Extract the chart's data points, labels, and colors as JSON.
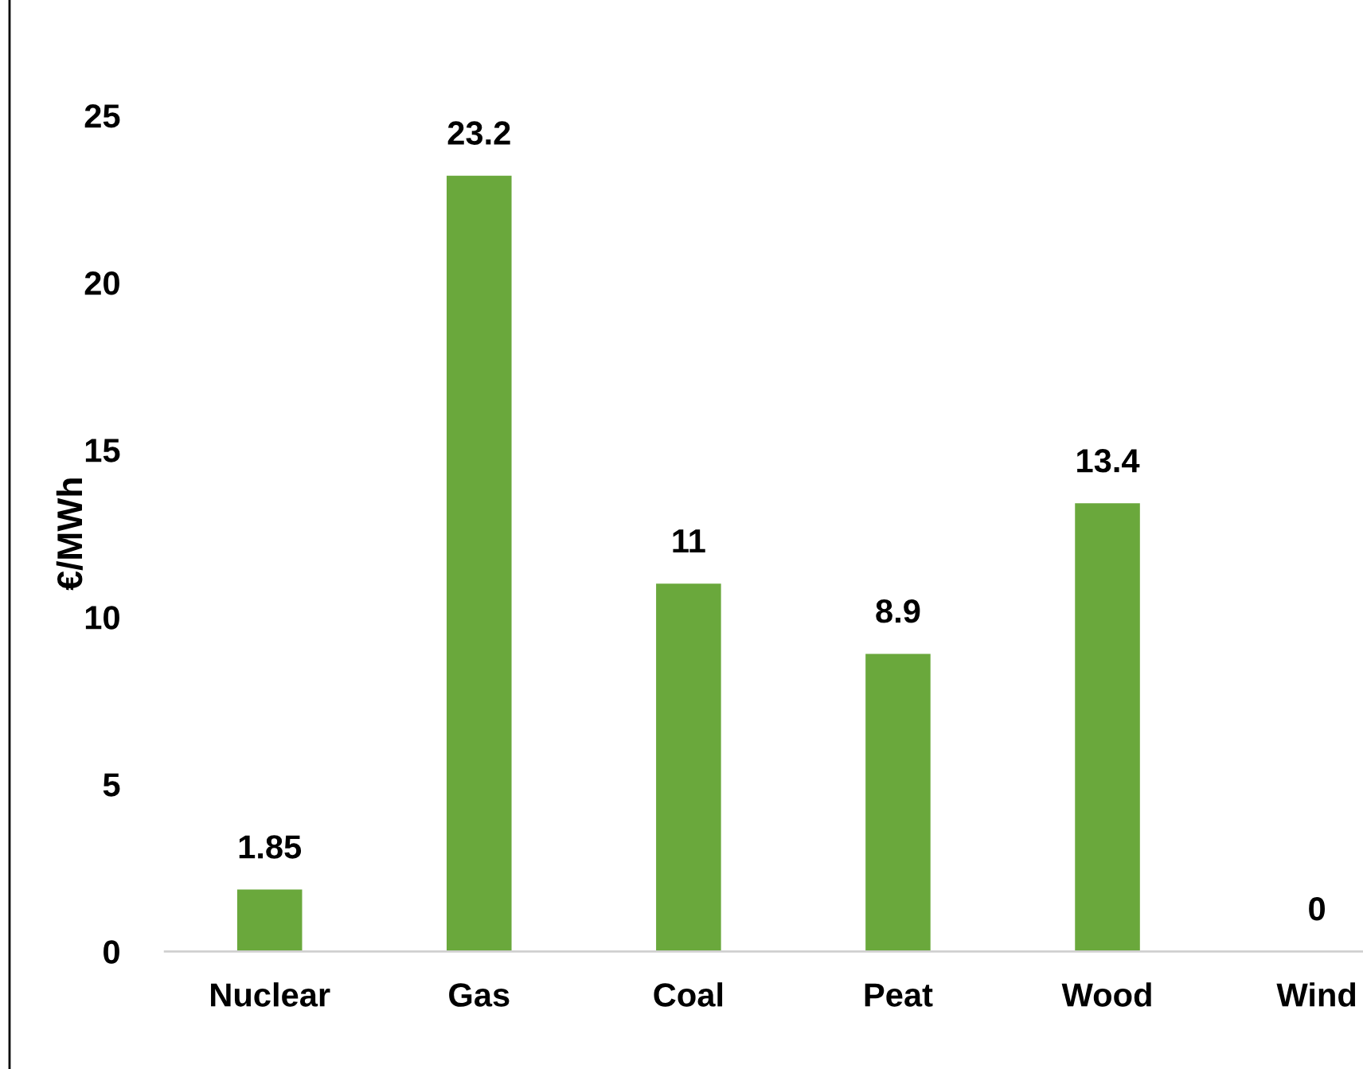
{
  "chart_data": {
    "type": "bar",
    "ylabel": "€/MWh",
    "categories": [
      "Nuclear",
      "Gas",
      "Coal",
      "Peat",
      "Wood",
      "Wind"
    ],
    "values": [
      1.85,
      23.2,
      11,
      8.9,
      13.4,
      0
    ],
    "color": "#6aa83c",
    "ylim": [
      0,
      25
    ],
    "yticks": [
      0,
      5,
      10,
      15,
      20,
      25
    ],
    "grid": false,
    "legend": false,
    "value_labels": [
      "1.85",
      "23.2",
      "11",
      "8.9",
      "13.4",
      "0"
    ]
  }
}
